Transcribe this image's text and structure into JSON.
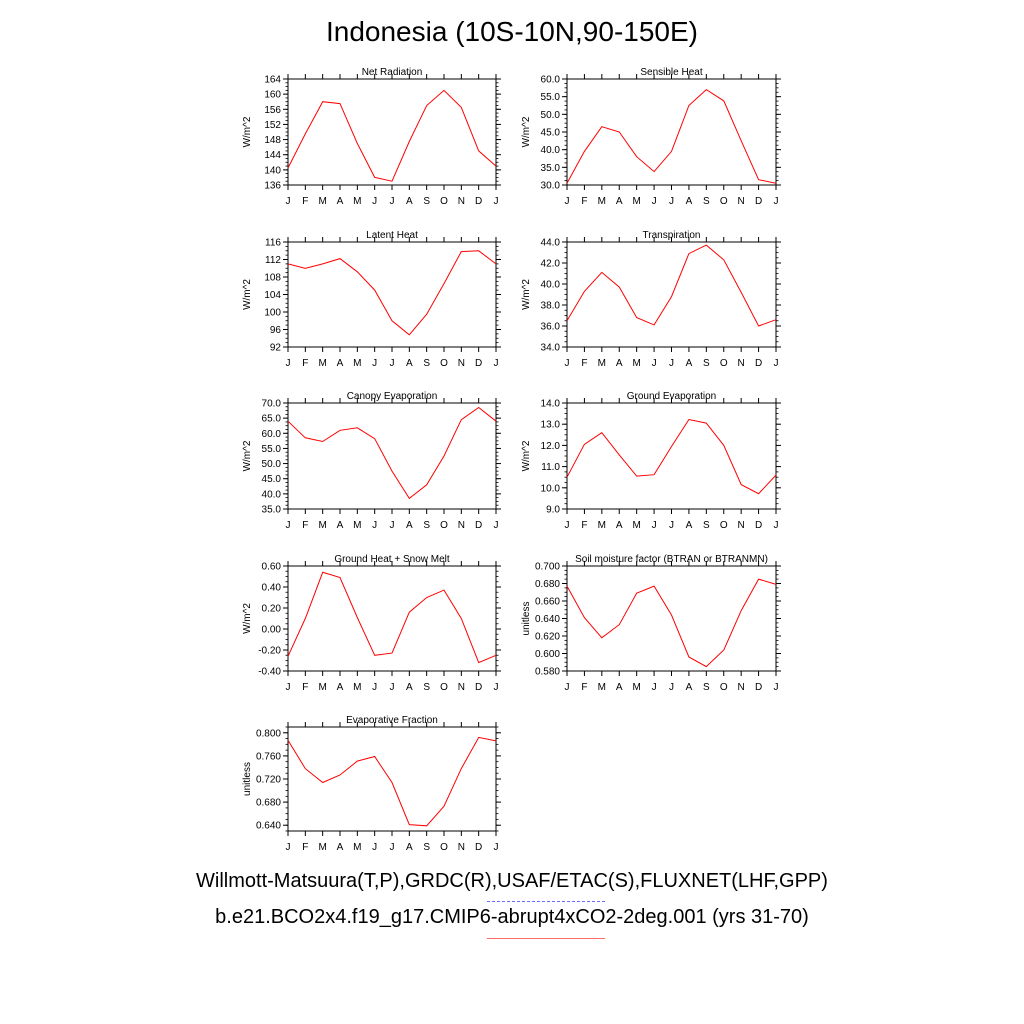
{
  "title": "Indonesia (10S-10N,90-150E)",
  "footer": {
    "observations": "Willmott-Matsuura(T,P),GRDC(R),USAF/ETAC(S),FLUXNET(LHF,GPP)",
    "model": "b.e21.BCO2x4.f19_g17.CMIP6-abrupt4xCO2-2deg.001 (yrs 31-70)"
  },
  "colors": {
    "model_line": "#ff0000",
    "observations_line": "#6b6bff",
    "axis": "#000000"
  },
  "chart_data": [
    {
      "type": "line",
      "title": "Net Radiation",
      "ylabel": "W/m^2",
      "categories": [
        "J",
        "F",
        "M",
        "A",
        "M",
        "J",
        "J",
        "A",
        "S",
        "O",
        "N",
        "D",
        "J"
      ],
      "ylim": [
        136,
        164
      ],
      "yticks": [
        "136",
        "140",
        "144",
        "148",
        "152",
        "156",
        "160",
        "164"
      ],
      "series": [
        {
          "values": [
            140.5,
            149.5,
            158.0,
            157.5,
            147.0,
            138.0,
            137.0,
            147.5,
            157.0,
            161.0,
            156.5,
            145.0,
            141.0
          ]
        }
      ]
    },
    {
      "type": "line",
      "title": "Sensible Heat",
      "ylabel": "W/m^2",
      "categories": [
        "J",
        "F",
        "M",
        "A",
        "M",
        "J",
        "J",
        "A",
        "S",
        "O",
        "N",
        "D",
        "J"
      ],
      "ylim": [
        30,
        60
      ],
      "yticks": [
        "30.0",
        "35.0",
        "40.0",
        "45.0",
        "50.0",
        "55.0",
        "60.0"
      ],
      "series": [
        {
          "values": [
            30.5,
            39.5,
            46.5,
            45.0,
            38.0,
            33.8,
            39.5,
            52.5,
            57.0,
            53.8,
            42.5,
            31.5,
            30.5
          ]
        }
      ]
    },
    {
      "type": "line",
      "title": "Latent Heat",
      "ylabel": "W/m^2",
      "categories": [
        "J",
        "F",
        "M",
        "A",
        "M",
        "J",
        "J",
        "A",
        "S",
        "O",
        "N",
        "D",
        "J"
      ],
      "ylim": [
        92,
        116
      ],
      "yticks": [
        "92",
        "96",
        "100",
        "104",
        "108",
        "112",
        "116"
      ],
      "series": [
        {
          "values": [
            111.0,
            110.0,
            111.0,
            112.2,
            109.2,
            105.0,
            98.0,
            94.8,
            99.5,
            106.5,
            113.8,
            114.0,
            111.0
          ]
        }
      ]
    },
    {
      "type": "line",
      "title": "Transpiration",
      "ylabel": "W/m^2",
      "categories": [
        "J",
        "F",
        "M",
        "A",
        "M",
        "J",
        "J",
        "A",
        "S",
        "O",
        "N",
        "D",
        "J"
      ],
      "ylim": [
        34,
        44
      ],
      "yticks": [
        "34.0",
        "36.0",
        "38.0",
        "40.0",
        "42.0",
        "44.0"
      ],
      "series": [
        {
          "values": [
            36.5,
            39.3,
            41.1,
            39.7,
            36.8,
            36.1,
            38.8,
            42.9,
            43.7,
            42.3,
            39.2,
            36.0,
            36.6
          ]
        }
      ]
    },
    {
      "type": "line",
      "title": "Canopy Evaporation",
      "ylabel": "W/m^2",
      "categories": [
        "J",
        "F",
        "M",
        "A",
        "M",
        "J",
        "J",
        "A",
        "S",
        "O",
        "N",
        "D",
        "J"
      ],
      "ylim": [
        35,
        70
      ],
      "yticks": [
        "35.0",
        "40.0",
        "45.0",
        "50.0",
        "55.0",
        "60.0",
        "65.0",
        "70.0"
      ],
      "series": [
        {
          "values": [
            64.0,
            58.5,
            57.3,
            61.0,
            61.8,
            58.2,
            47.5,
            38.5,
            43.0,
            52.5,
            64.5,
            68.5,
            64.0
          ]
        }
      ]
    },
    {
      "type": "line",
      "title": "Ground Evaporation",
      "ylabel": "W/m^2",
      "categories": [
        "J",
        "F",
        "M",
        "A",
        "M",
        "J",
        "J",
        "A",
        "S",
        "O",
        "N",
        "D",
        "J"
      ],
      "ylim": [
        9,
        14
      ],
      "yticks": [
        "9.0",
        "10.0",
        "11.0",
        "12.0",
        "13.0",
        "14.0"
      ],
      "series": [
        {
          "values": [
            10.5,
            12.05,
            12.6,
            11.55,
            10.55,
            10.62,
            11.95,
            13.22,
            13.05,
            12.0,
            10.15,
            9.72,
            10.6
          ]
        }
      ]
    },
    {
      "type": "line",
      "title": "Ground Heat + Snow Melt",
      "ylabel": "W/m^2",
      "categories": [
        "J",
        "F",
        "M",
        "A",
        "M",
        "J",
        "J",
        "A",
        "S",
        "O",
        "N",
        "D",
        "J"
      ],
      "ylim": [
        -0.4,
        0.6
      ],
      "yticks": [
        "-0.40",
        "-0.20",
        "0.00",
        "0.20",
        "0.40",
        "0.60"
      ],
      "series": [
        {
          "values": [
            -0.26,
            0.1,
            0.54,
            0.49,
            0.11,
            -0.25,
            -0.23,
            0.16,
            0.3,
            0.37,
            0.1,
            -0.32,
            -0.25
          ]
        }
      ]
    },
    {
      "type": "line",
      "title": "Soil moisture factor (BTRAN or BTRANMN)",
      "ylabel": "unitless",
      "categories": [
        "J",
        "F",
        "M",
        "A",
        "M",
        "J",
        "J",
        "A",
        "S",
        "O",
        "N",
        "D",
        "J"
      ],
      "ylim": [
        0.58,
        0.7
      ],
      "yticks": [
        "0.580",
        "0.600",
        "0.620",
        "0.640",
        "0.660",
        "0.680",
        "0.700"
      ],
      "series": [
        {
          "values": [
            0.677,
            0.641,
            0.618,
            0.633,
            0.669,
            0.677,
            0.644,
            0.596,
            0.585,
            0.604,
            0.649,
            0.685,
            0.679
          ]
        }
      ]
    },
    {
      "type": "line",
      "title": "Evaporative Fraction",
      "ylabel": "unitless",
      "categories": [
        "J",
        "F",
        "M",
        "A",
        "M",
        "J",
        "J",
        "A",
        "S",
        "O",
        "N",
        "D",
        "J"
      ],
      "ylim": [
        0.63,
        0.81
      ],
      "yticks": [
        "0.640",
        "0.680",
        "0.720",
        "0.760",
        "0.800"
      ],
      "series": [
        {
          "values": [
            0.787,
            0.738,
            0.714,
            0.727,
            0.751,
            0.759,
            0.714,
            0.641,
            0.639,
            0.673,
            0.738,
            0.792,
            0.786
          ]
        }
      ]
    }
  ]
}
